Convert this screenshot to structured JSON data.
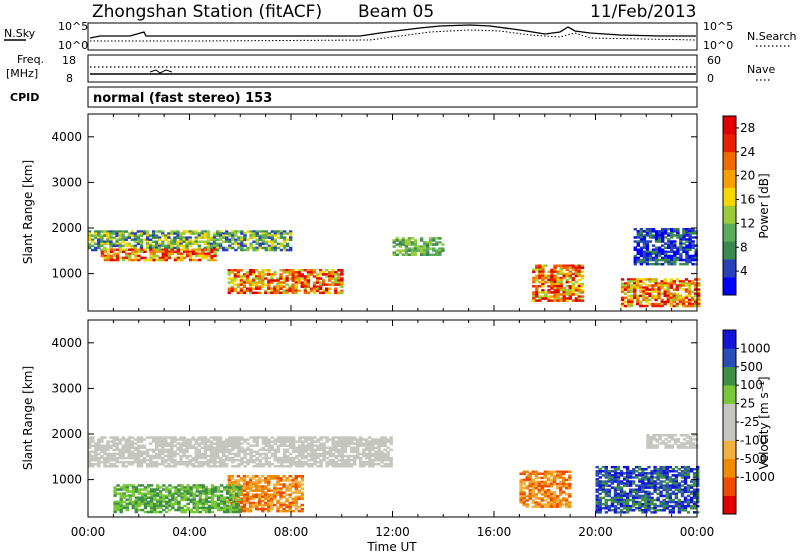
{
  "header": {
    "station": "Zhongshan Station (fitACF)",
    "beam": "Beam 05",
    "date": "11/Feb/2013"
  },
  "strip_panels": {
    "nsky_label": "N.Sky",
    "nsky_ticks": [
      "10^5",
      "10^0"
    ],
    "nsearch_label": "N.Search",
    "nsearch_ticks": [
      "10^5",
      "10^0"
    ],
    "freq_label": "Freq.",
    "freq_unit": "[MHz]",
    "freq_ticks": [
      "18",
      "8"
    ],
    "nave_label": "Nave",
    "nave_ticks": [
      "60",
      "0"
    ],
    "cpid_label": "CPID",
    "cpid_text": "normal (fast stereo) 153"
  },
  "time_axis": {
    "ticks": [
      "00:00",
      "04:00",
      "08:00",
      "12:00",
      "16:00",
      "20:00",
      "00:00"
    ],
    "xlabel": "Time UT"
  },
  "colors": {
    "power": [
      "#0000ff",
      "#2840b8",
      "#3a8a50",
      "#5aab5a",
      "#9acb3a",
      "#f5d800",
      "#f5a000",
      "#f06a00",
      "#e82000",
      "#e00000"
    ],
    "velocity": [
      "#e00000",
      "#ef4a00",
      "#f08a00",
      "#f2b040",
      "#c6c6c0",
      "#c6c6c0",
      "#78c838",
      "#3e8e48",
      "#2a4eb8",
      "#1414d8"
    ]
  },
  "chart_data": [
    {
      "type": "heatmap",
      "title": "Power",
      "ylabel": "Slant Range [km]",
      "xlabel": "",
      "x_range": [
        "00:00",
        "00:00"
      ],
      "ylim": [
        180,
        4500
      ],
      "yticks": [
        1000,
        2000,
        3000,
        4000
      ],
      "colorbar": {
        "label": "Power [dB]",
        "ticks": [
          4,
          8,
          12,
          16,
          20,
          24,
          28
        ],
        "range": [
          0,
          30
        ]
      },
      "scatter_regions": [
        {
          "t_start": 0.0,
          "t_end": 8.0,
          "range_km": [
            1500,
            1950
          ],
          "level": "mid-high"
        },
        {
          "t_start": 0.5,
          "t_end": 5.0,
          "range_km": [
            1300,
            1550
          ],
          "level": "high"
        },
        {
          "t_start": 5.5,
          "t_end": 10.0,
          "range_km": [
            600,
            1100
          ],
          "level": "high"
        },
        {
          "t_start": 12.0,
          "t_end": 14.0,
          "range_km": [
            1400,
            1800
          ],
          "level": "mid"
        },
        {
          "t_start": 17.5,
          "t_end": 19.5,
          "range_km": [
            400,
            1200
          ],
          "level": "high"
        },
        {
          "t_start": 21.0,
          "t_end": 24.0,
          "range_km": [
            300,
            900
          ],
          "level": "high"
        },
        {
          "t_start": 21.5,
          "t_end": 24.0,
          "range_km": [
            1200,
            2000
          ],
          "level": "low"
        }
      ]
    },
    {
      "type": "heatmap",
      "title": "Velocity",
      "ylabel": "Slant Range [km]",
      "xlabel": "Time UT",
      "x_range": [
        "00:00",
        "00:00"
      ],
      "ylim": [
        180,
        4500
      ],
      "yticks": [
        1000,
        2000,
        3000,
        4000
      ],
      "colorbar": {
        "label": "Velocity [m s⁻¹]",
        "ticks": [
          "1000",
          "500",
          "100",
          "25",
          "-25",
          "-100",
          "-500",
          "-1000"
        ]
      },
      "scatter_regions": [
        {
          "t_start": 0.0,
          "t_end": 12.0,
          "range_km": [
            1300,
            1950
          ],
          "level": "ground"
        },
        {
          "t_start": 5.5,
          "t_end": 8.5,
          "range_km": [
            300,
            1100
          ],
          "level": "negative"
        },
        {
          "t_start": 1.0,
          "t_end": 6.0,
          "range_km": [
            300,
            900
          ],
          "level": "positive"
        },
        {
          "t_start": 17.0,
          "t_end": 19.0,
          "range_km": [
            400,
            1200
          ],
          "level": "negative"
        },
        {
          "t_start": 20.0,
          "t_end": 24.0,
          "range_km": [
            300,
            1300
          ],
          "level": "strong-positive"
        },
        {
          "t_start": 22.0,
          "t_end": 24.0,
          "range_km": [
            1700,
            2000
          ],
          "level": "ground"
        }
      ]
    }
  ]
}
